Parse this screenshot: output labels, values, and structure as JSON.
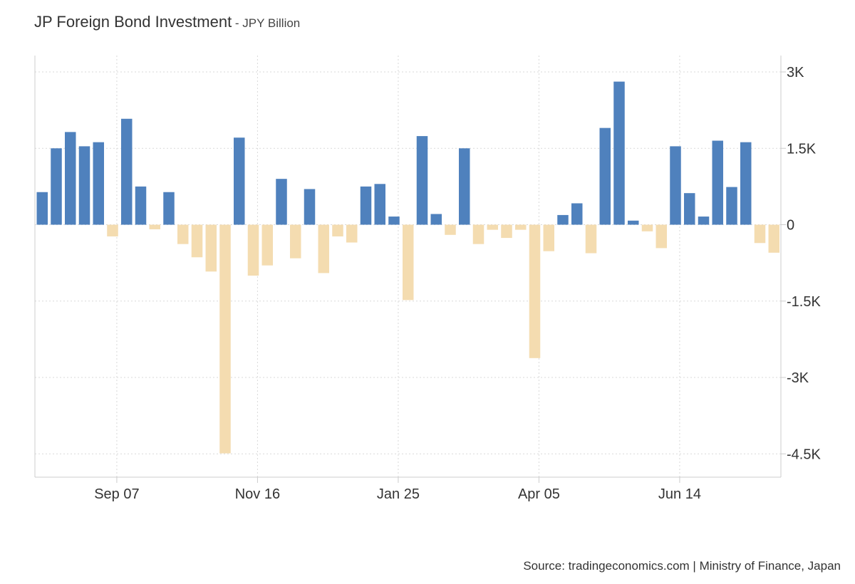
{
  "chart_data": {
    "type": "bar",
    "title": "JP Foreign Bond Investment",
    "subtitle": " - JPY Billion",
    "xlabel": "",
    "ylabel": "",
    "ylim": [
      -5000,
      3200
    ],
    "yticks": [
      3000,
      1500,
      0,
      -1500,
      -3000,
      -4500
    ],
    "ytick_labels": [
      "3K",
      "1.5K",
      "0",
      "-1.5K",
      "-3K",
      "-4.5K"
    ],
    "xtick_labels": [
      {
        "label": "Sep 07",
        "index": 5.3
      },
      {
        "label": "Nov 16",
        "index": 15.3
      },
      {
        "label": "Jan 25",
        "index": 25.3
      },
      {
        "label": "Apr 05",
        "index": 35.3
      },
      {
        "label": "Jun 14",
        "index": 45.3
      }
    ],
    "grid": true,
    "legend": "none",
    "colors": {
      "positive": "#4f81bd",
      "negative": "#f4dcb0",
      "grid": "#d9d9d9",
      "axis": "#cccccc"
    },
    "values": [
      640,
      1500,
      1820,
      1540,
      1620,
      -230,
      2080,
      750,
      -90,
      640,
      -380,
      -640,
      -920,
      -4490,
      1710,
      -1000,
      -800,
      900,
      -660,
      700,
      -950,
      -230,
      -350,
      750,
      800,
      160,
      -1480,
      1740,
      210,
      -200,
      1500,
      -380,
      -100,
      -260,
      -100,
      -2620,
      -520,
      190,
      420,
      -560,
      1900,
      2810,
      80,
      -130,
      -460,
      1540,
      620,
      160,
      1650,
      740,
      1620,
      -360,
      -550
    ]
  },
  "source": "Source: tradingeconomics.com | Ministry of Finance, Japan"
}
